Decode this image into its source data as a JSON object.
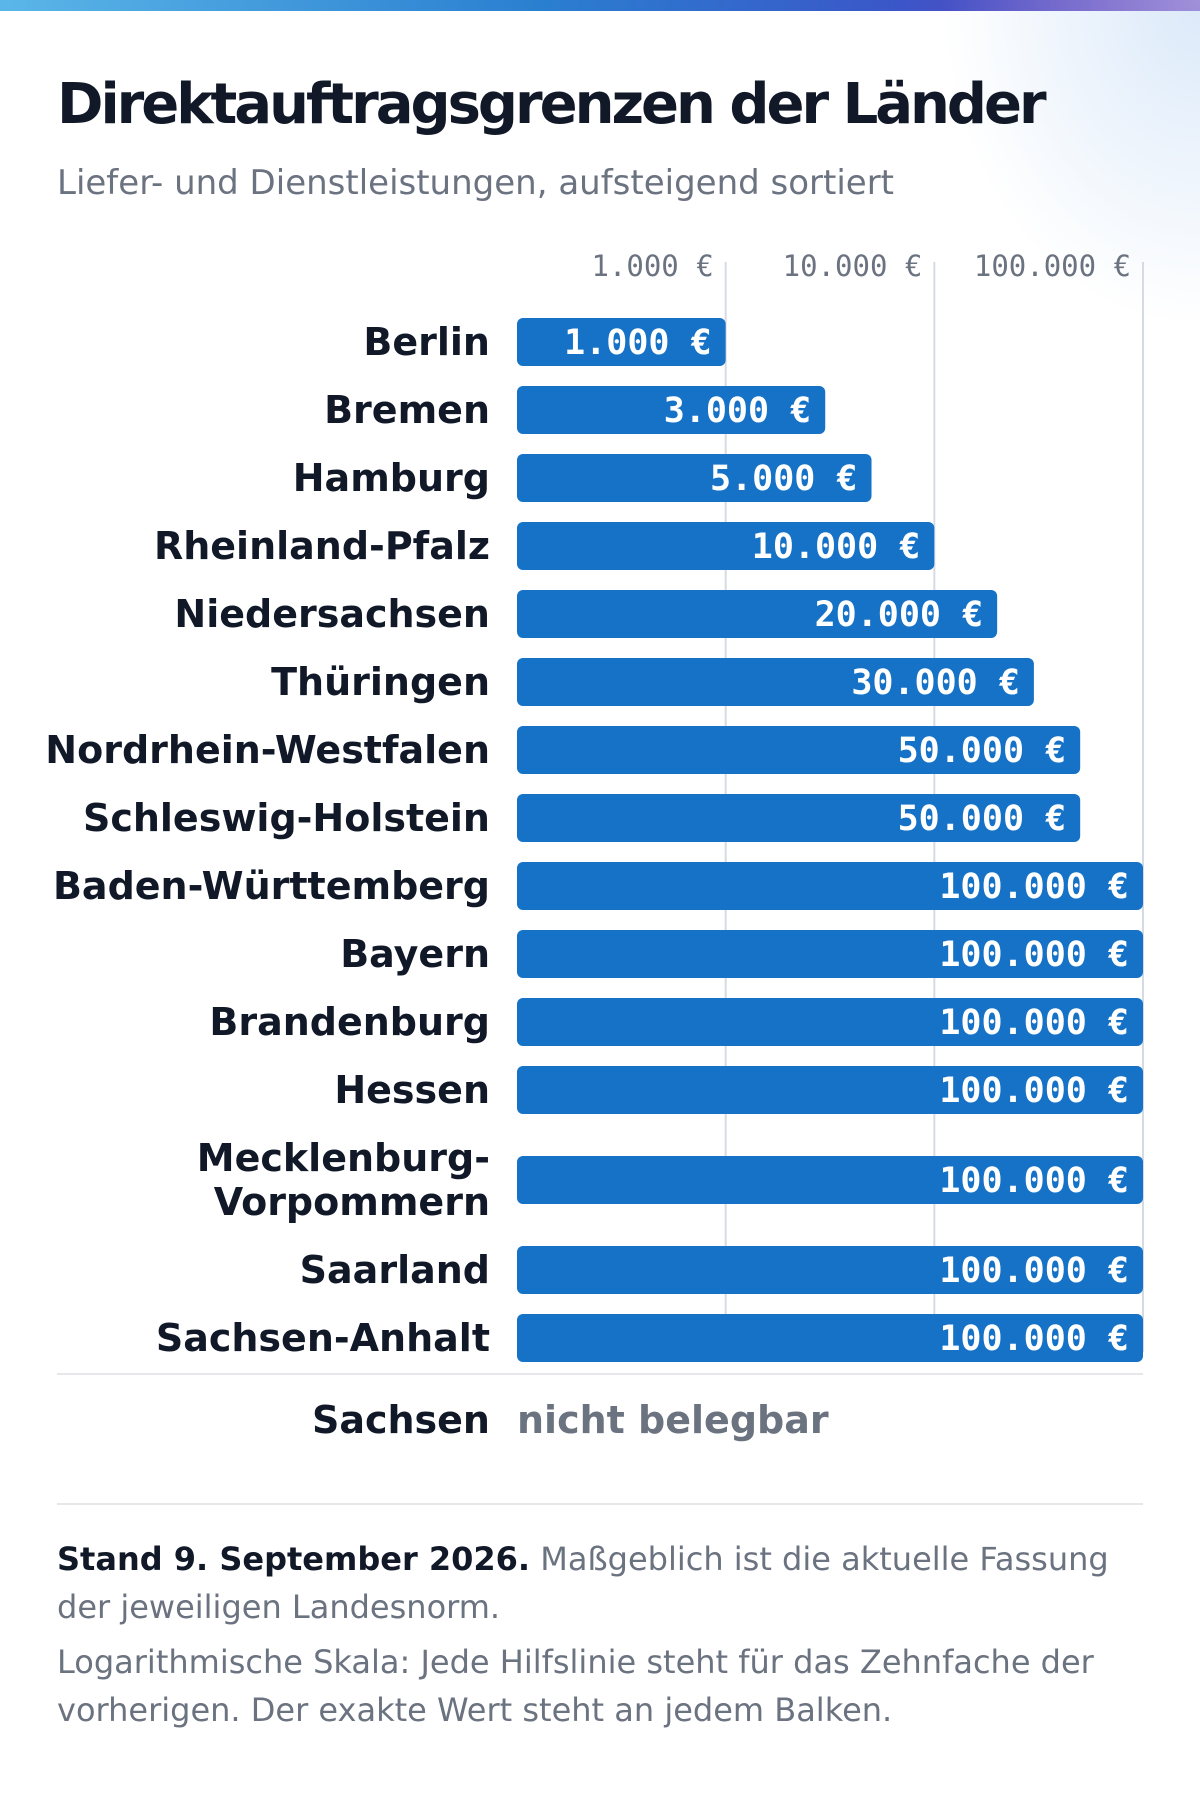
{
  "header": {
    "title": "Direktauftragsgrenzen der Länder",
    "subtitle": "Liefer- und Dienstleistungen, aufsteigend sortiert"
  },
  "colors": {
    "bar": "#1572c7",
    "gridline": "#d6dbe3",
    "text": "#111827",
    "muted": "#6b7280"
  },
  "chart_data": {
    "type": "bar",
    "orientation": "horizontal",
    "scale": "log",
    "xlim": [
      100,
      100000
    ],
    "grid": true,
    "ticks": [
      {
        "value": 1000,
        "label": "1.000 €"
      },
      {
        "value": 10000,
        "label": "10.000 €"
      },
      {
        "value": 100000,
        "label": "100.000 €"
      }
    ],
    "categories": [
      [
        "Berlin"
      ],
      [
        "Bremen"
      ],
      [
        "Hamburg"
      ],
      [
        "Rheinland-Pfalz"
      ],
      [
        "Niedersachsen"
      ],
      [
        "Thüringen"
      ],
      [
        "Nordrhein-Westfalen"
      ],
      [
        "Schleswig-Holstein"
      ],
      [
        "Baden-Württemberg"
      ],
      [
        "Bayern"
      ],
      [
        "Brandenburg"
      ],
      [
        "Hessen"
      ],
      [
        "Mecklenburg-",
        "Vorpommern"
      ],
      [
        "Saarland"
      ],
      [
        "Sachsen-Anhalt"
      ]
    ],
    "values": [
      1000,
      3000,
      5000,
      10000,
      20000,
      30000,
      50000,
      50000,
      100000,
      100000,
      100000,
      100000,
      100000,
      100000,
      100000
    ],
    "value_labels": [
      "1.000 €",
      "3.000 €",
      "5.000 €",
      "10.000 €",
      "20.000 €",
      "30.000 €",
      "50.000 €",
      "50.000 €",
      "100.000 €",
      "100.000 €",
      "100.000 €",
      "100.000 €",
      "100.000 €",
      "100.000 €",
      "100.000 €"
    ],
    "not_available": {
      "name": "Sachsen",
      "text": "nicht belegbar"
    }
  },
  "footer": {
    "note1_bold": "Stand 9. September 2026.",
    "note1_text": " Maßgeblich ist die aktuelle Fassung der jeweiligen Landesnorm.",
    "note2": "Logarithmische Skala: Jede Hilfslinie steht für das Zehnfache der vorherigen. Der exakte Wert steht an jedem Balken."
  }
}
